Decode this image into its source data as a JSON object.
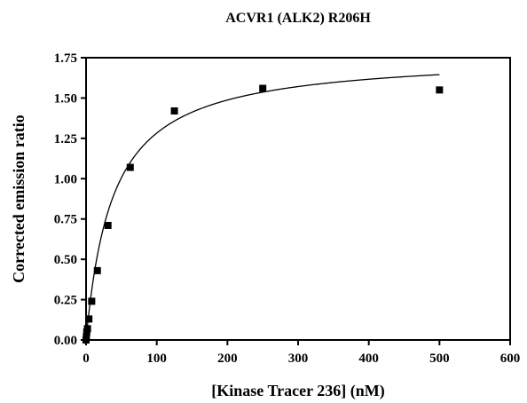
{
  "chart_data": {
    "type": "scatter",
    "title": "ACVR1 (ALK2) R206H",
    "xlabel": "[Kinase Tracer 236] (nM)",
    "ylabel": "Corrected emission ratio",
    "xlim": [
      0,
      600
    ],
    "ylim": [
      0,
      1.75
    ],
    "x_ticks": [
      "0",
      "100",
      "200",
      "300",
      "400",
      "500",
      "600"
    ],
    "y_ticks": [
      "0.00",
      "0.25",
      "0.50",
      "0.75",
      "1.00",
      "1.25",
      "1.50",
      "1.75"
    ],
    "grid": false,
    "series": [
      {
        "marker": "square",
        "x": [
          0,
          0.5,
          1,
          2,
          4,
          8,
          16,
          31,
          62.5,
          125,
          250,
          500
        ],
        "y": [
          0.0,
          0.02,
          0.05,
          0.07,
          0.13,
          0.24,
          0.43,
          0.71,
          1.07,
          1.42,
          1.56,
          1.55
        ]
      }
    ],
    "fit_curve": {
      "model": "one-site binding (hyperbola)",
      "bmax": 1.77,
      "kd": 38
    }
  }
}
